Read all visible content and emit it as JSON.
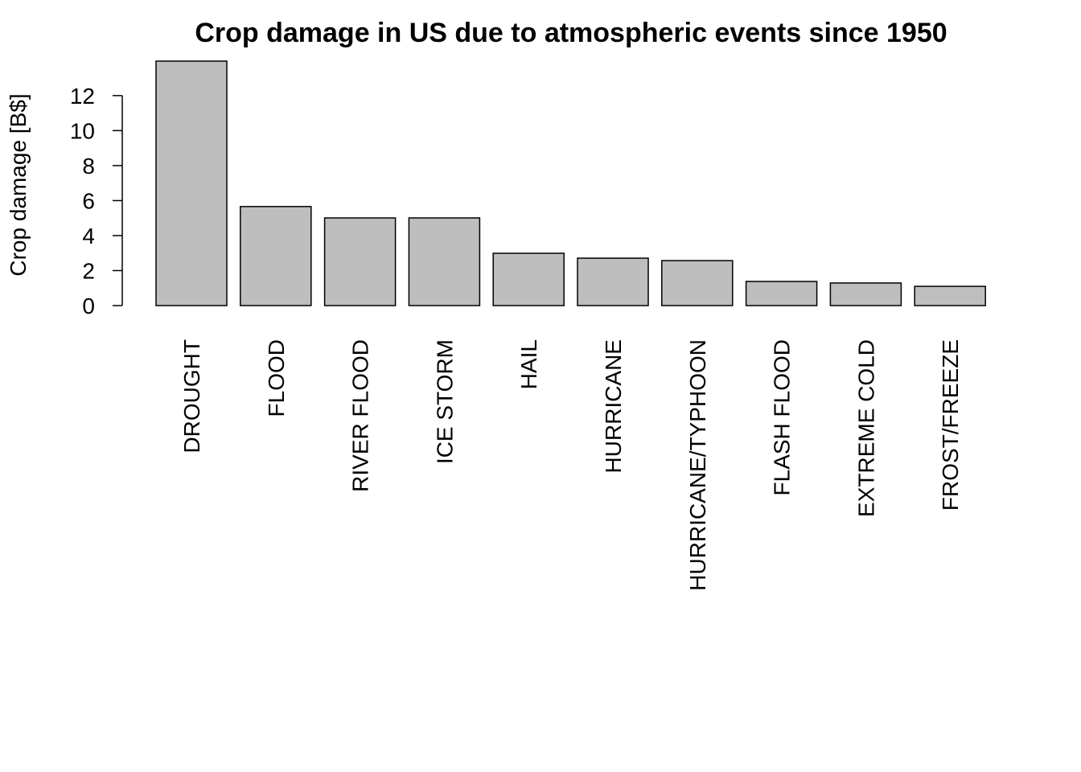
{
  "chart_data": {
    "type": "bar",
    "title": "Crop damage in US due to atmospheric events since 1950",
    "y_label": "Crop damage [B$]",
    "categories": [
      "DROUGHT",
      "FLOOD",
      "RIVER FLOOD",
      "ICE STORM",
      "HAIL",
      "HURRICANE",
      "HURRICANE/TYPHOON",
      "FLASH FLOOD",
      "EXTREME COLD",
      "FROST/FREEZE"
    ],
    "values": [
      13.97,
      5.66,
      5.01,
      5.01,
      2.99,
      2.71,
      2.57,
      1.38,
      1.29,
      1.1
    ],
    "color": "#bebebe",
    "ylim": [
      0,
      13.97
    ],
    "yticks": [
      0,
      2,
      4,
      6,
      8,
      10,
      12
    ],
    "grid": false
  }
}
